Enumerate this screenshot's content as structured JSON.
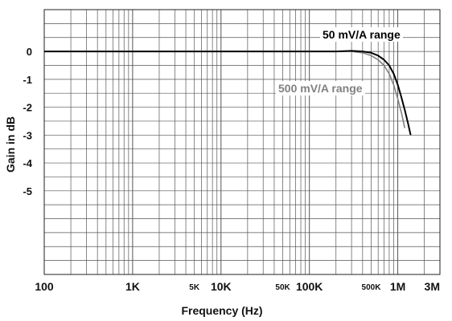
{
  "chart_data": {
    "type": "line",
    "xlabel": "Frequency (Hz)",
    "ylabel": "Gain in dB",
    "xscale": "log",
    "xlim": [
      100,
      3000000
    ],
    "ylim": [
      -8,
      1.5
    ],
    "grid": true,
    "y_tick_labels": [
      "0",
      "-1",
      "-2",
      "-3",
      "-4",
      "-5"
    ],
    "y_tick_values": [
      0,
      -1,
      -2,
      -3,
      -4,
      -5
    ],
    "x_major_labels": [
      {
        "label": "100",
        "value": 100
      },
      {
        "label": "1K",
        "value": 1000
      },
      {
        "label": "10K",
        "value": 10000
      },
      {
        "label": "100K",
        "value": 100000
      },
      {
        "label": "1M",
        "value": 1000000
      },
      {
        "label": "3M",
        "value": 3000000
      }
    ],
    "x_minor_labels": [
      {
        "label": "5K",
        "value": 5000
      },
      {
        "label": "50K",
        "value": 50000
      },
      {
        "label": "500K",
        "value": 500000
      }
    ],
    "series": [
      {
        "name": "50 mV/A range",
        "color": "#000000",
        "x": [
          100,
          1000,
          10000,
          100000,
          200000,
          300000,
          400000,
          500000,
          600000,
          700000,
          800000,
          900000,
          1000000,
          1100000,
          1200000,
          1300000,
          1400000
        ],
        "y": [
          0,
          0,
          0,
          0,
          0,
          0.02,
          0,
          -0.05,
          -0.15,
          -0.3,
          -0.5,
          -0.8,
          -1.2,
          -1.65,
          -2.1,
          -2.55,
          -3.0
        ]
      },
      {
        "name": "500 mV/A range",
        "color": "#808080",
        "x": [
          100,
          1000,
          10000,
          100000,
          200000,
          300000,
          400000,
          500000,
          600000,
          700000,
          800000,
          900000,
          1000000,
          1100000,
          1200000
        ],
        "y": [
          0,
          0,
          0,
          0,
          0,
          0,
          -0.05,
          -0.15,
          -0.3,
          -0.5,
          -0.8,
          -1.2,
          -1.7,
          -2.2,
          -2.75
        ]
      }
    ]
  }
}
